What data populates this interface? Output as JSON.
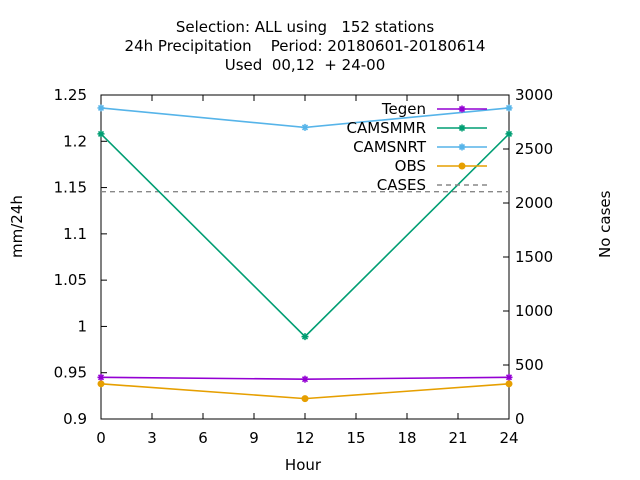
{
  "chart_data": {
    "type": "line",
    "title": [
      "Selection: ALL using   152 stations",
      "24h Precipitation    Period: 20180601-20180614",
      "Used  00,12  + 24-00"
    ],
    "xlabel": "Hour",
    "ylabel": "mm/24h",
    "y2label": "No cases",
    "xlim": [
      0,
      24
    ],
    "ylim": [
      0.9,
      1.25
    ],
    "y2lim": [
      0,
      3000
    ],
    "xticks": [
      0,
      3,
      6,
      9,
      12,
      15,
      18,
      21,
      24
    ],
    "yticks": [
      0.9,
      0.95,
      1,
      1.05,
      1.1,
      1.15,
      1.2,
      1.25
    ],
    "ytick_labels": [
      "0.9",
      "0.95",
      "1",
      "1.05",
      "1.1",
      "1.15",
      "1.2",
      "1.25"
    ],
    "y2ticks": [
      0,
      500,
      1000,
      1500,
      2000,
      2500,
      3000
    ],
    "legend_position": "top-right",
    "series": [
      {
        "name": "Tegen",
        "color": "#9400d3",
        "axis": "y",
        "x": [
          0,
          12,
          24
        ],
        "values": [
          0.945,
          0.943,
          0.945
        ],
        "marker": "cross",
        "dash": false
      },
      {
        "name": "CAMSMMR",
        "color": "#009e73",
        "axis": "y",
        "x": [
          0,
          12,
          24
        ],
        "values": [
          1.208,
          0.989,
          1.208
        ],
        "marker": "cross",
        "dash": false
      },
      {
        "name": "CAMSNRT",
        "color": "#56b4e9",
        "axis": "y",
        "x": [
          0,
          12,
          24
        ],
        "values": [
          1.236,
          1.215,
          1.236
        ],
        "marker": "cross",
        "dash": false
      },
      {
        "name": "OBS",
        "color": "#e69f00",
        "axis": "y",
        "x": [
          0,
          12,
          24
        ],
        "values": [
          0.938,
          0.922,
          0.938
        ],
        "marker": "circle",
        "dash": false
      },
      {
        "name": "CASES",
        "color": "#888888",
        "axis": "y2",
        "x": [
          0,
          12,
          24
        ],
        "values": [
          2105,
          2105,
          2105
        ],
        "marker": "none",
        "dash": true
      }
    ]
  }
}
